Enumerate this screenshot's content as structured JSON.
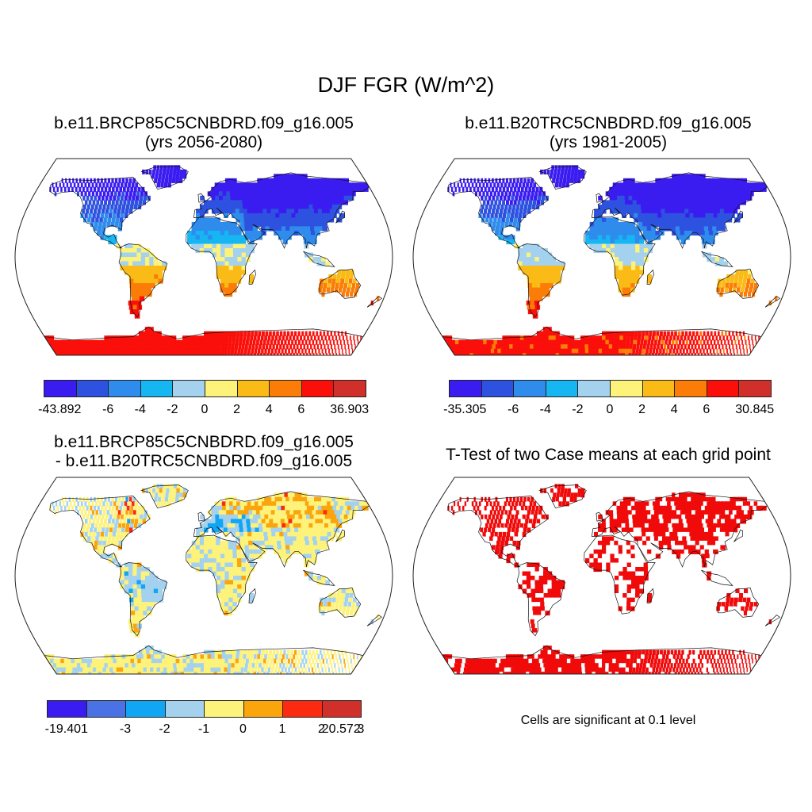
{
  "title": "DJF FGR (W/m^2)",
  "panels": [
    {
      "title_line1": "b.e11.BRCP85C5CNBDRD.f09_g16.005",
      "title_line2": "(yrs 2056-2080)"
    },
    {
      "title_line1": "b.e11.B20TRC5CNBDRD.f09_g16.005",
      "title_line2": "(yrs 1981-2005)"
    },
    {
      "title_line1": "b.e11.BRCP85C5CNBDRD.f09_g16.005",
      "title_line2": "- b.e11.B20TRC5CNBDRD.f09_g16.005"
    },
    {
      "title_line1": "T-Test of two Case means at each grid point"
    }
  ],
  "colorbars": [
    {
      "colors": [
        "#3a1cf0",
        "#2e52e0",
        "#2f8ced",
        "#15b6f2",
        "#a4d2ee",
        "#fdf27a",
        "#fbbb16",
        "#fb7d07",
        "#fb0f0a",
        "#d1302a"
      ],
      "labels": [
        "-43.892",
        "-6",
        "-4",
        "-2",
        "0",
        "2",
        "4",
        "6",
        "36.903"
      ]
    },
    {
      "colors": [
        "#3a1cf0",
        "#2e52e0",
        "#2f8ced",
        "#15b6f2",
        "#a4d2ee",
        "#fdf27a",
        "#fbbb16",
        "#fb7d07",
        "#fb0f0a",
        "#d1302a"
      ],
      "labels": [
        "-35.305",
        "-6",
        "-4",
        "-2",
        "0",
        "2",
        "4",
        "6",
        "30.845"
      ]
    },
    {
      "colors": [
        "#3a1cf0",
        "#4a72e4",
        "#11a6f3",
        "#a4d2ee",
        "#fdf27a",
        "#fba50d",
        "#fb2a10",
        "#d1302a"
      ],
      "labels": [
        "-19.401",
        "-3",
        "-2",
        "-1",
        "0",
        "1",
        "2",
        "3",
        "20.572"
      ]
    }
  ],
  "significance_note": "Cells are significant at 0.1 level"
}
